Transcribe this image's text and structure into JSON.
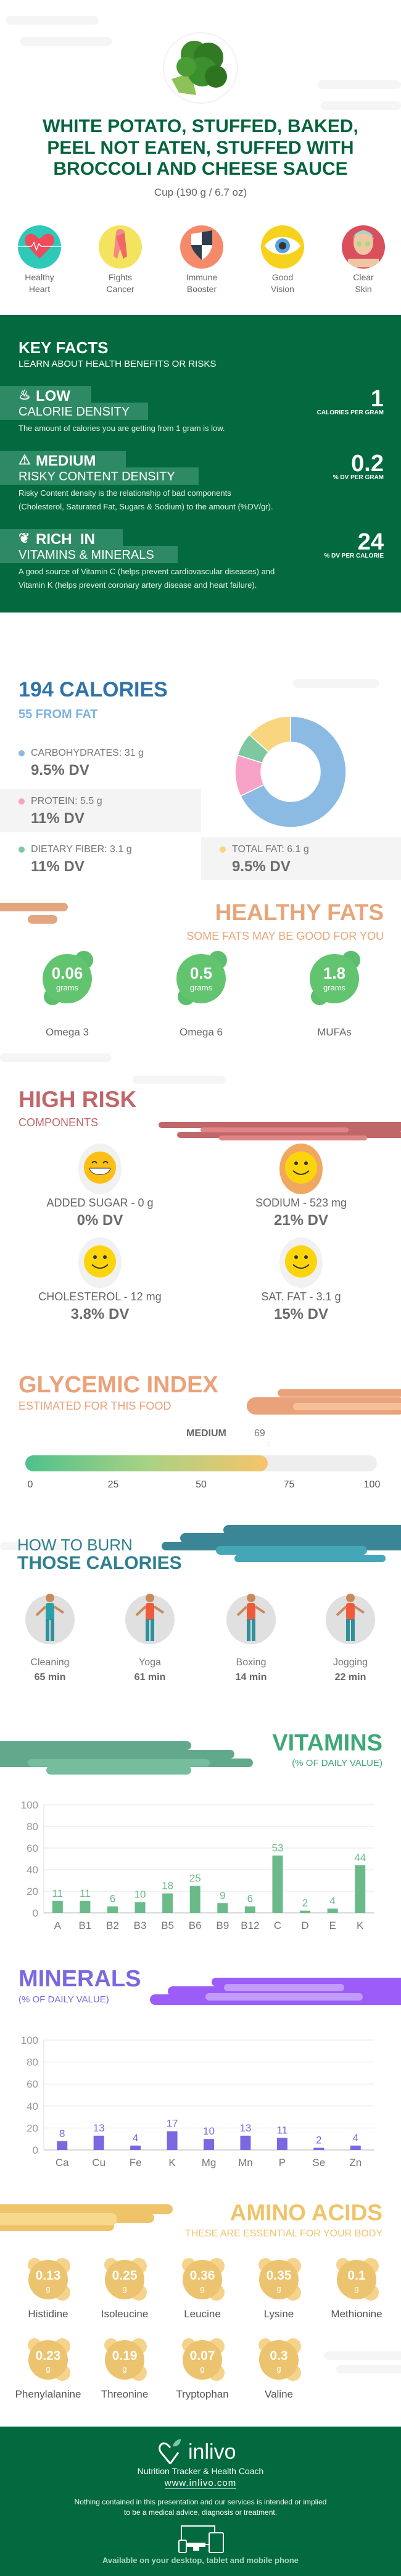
{
  "header": {
    "title_lines": [
      "WHITE POTATO, STUFFED, BAKED,",
      "PEEL NOT EATEN, STUFFED WITH",
      "BROCCOLI AND CHEESE SAUCE"
    ],
    "serving": "Cup (190 g / 6.7 oz)",
    "image_icon": "broccoli-photo"
  },
  "benefits": [
    {
      "line1": "Healthy",
      "line2": "Heart",
      "icon": "heart-icon",
      "color": "#2ec9b8"
    },
    {
      "line1": "Fights",
      "line2": "Cancer",
      "icon": "ribbon-icon",
      "color": "#f4e35e"
    },
    {
      "line1": "Immune",
      "line2": "Booster",
      "icon": "shield-icon",
      "color": "#f58a6b"
    },
    {
      "line1": "Good",
      "line2": "Vision",
      "icon": "eye-icon",
      "color": "#f7d21c"
    },
    {
      "line1": "Clear",
      "line2": "Skin",
      "icon": "face-mask-icon",
      "color": "#d94f5c"
    }
  ],
  "key_facts": {
    "title": "KEY FACTS",
    "subtitle": "LEARN ABOUT HEALTH BENEFITS OR RISKS",
    "items": [
      {
        "level": "LOW",
        "label": "CALORIE DENSITY",
        "value": "1",
        "unit": "CALORIES PER GRAM",
        "icon": "flame-icon",
        "desc_lines": [
          "The amount of calories you are getting from 1 gram is low."
        ]
      },
      {
        "level": "MEDIUM",
        "label": "RISKY CONTENT DENSITY",
        "value": "0.2",
        "unit": "% DV PER GRAM",
        "icon": "warning-icon",
        "desc_lines": [
          "Risky Content density is the relationship of bad components",
          "(Cholesterol, Saturated Fat, Sugars & Sodium) to the amount (%DV/gr)."
        ]
      },
      {
        "level": "RICH  IN",
        "label": "VITAMINS & MINERALS",
        "value": "24",
        "unit": "% DV PER CALORIE",
        "icon": "leaf-icon",
        "desc_lines": [
          "A good source of Vitamin C (helps prevent cardiovascular diseases) and",
          "Vitamin K (helps prevent coronary artery disease and heart failure)."
        ]
      }
    ]
  },
  "calories": {
    "title": "194 CALORIES",
    "subtitle": "55 FROM FAT",
    "macros": [
      {
        "label": "CARBOHYDRATES: 31 g",
        "dv": "9.5% DV",
        "grams": 31,
        "color": "#8bbbe2"
      },
      {
        "label": "PROTEIN: 5.5 g",
        "dv": "11% DV",
        "grams": 5.5,
        "color": "#f7a3c8"
      },
      {
        "label": "DIETARY FIBER: 3.1 g",
        "dv": "11% DV",
        "grams": 3.1,
        "color": "#7dc8a0"
      },
      {
        "label": "TOTAL FAT: 6.1 g",
        "dv": "9.5% DV",
        "grams": 6.1,
        "color": "#f8d57e"
      }
    ]
  },
  "healthy_fats": {
    "title": "HEALTHY FATS",
    "subtitle": "SOME FATS MAY BE GOOD FOR YOU",
    "unit": "grams",
    "items": [
      {
        "value": "0.06",
        "label": "Omega 3"
      },
      {
        "value": "0.5",
        "label": "Omega 6"
      },
      {
        "value": "1.8",
        "label": "MUFAs"
      }
    ]
  },
  "high_risk": {
    "title": "HIGH RISK",
    "subtitle": "COMPONENTS",
    "items": [
      {
        "label": "ADDED SUGAR - 0 g",
        "dv": "0% DV",
        "icon": "grinning-face-icon"
      },
      {
        "label": "SODIUM - 523 mg",
        "dv": "21% DV",
        "icon": "smiling-face-icon"
      },
      {
        "label": "CHOLESTEROL - 12 mg",
        "dv": "3.8% DV",
        "icon": "smiling-face-icon"
      },
      {
        "label": "SAT. FAT - 3.1 g",
        "dv": "15% DV",
        "icon": "smiling-face-icon"
      }
    ]
  },
  "glycemic": {
    "title": "GLYCEMIC INDEX",
    "subtitle": "ESTIMATED FOR THIS FOOD",
    "level": "MEDIUM",
    "value": 69,
    "value_text": "69",
    "scale": [
      "0",
      "25",
      "50",
      "75",
      "100"
    ]
  },
  "burn": {
    "title_top": "HOW TO BURN",
    "title_bottom": "THOSE CALORIES",
    "items": [
      {
        "label": "Cleaning",
        "time": "65 min",
        "icon": "cleaning-person-icon"
      },
      {
        "label": "Yoga",
        "time": "61 min",
        "icon": "yoga-person-icon"
      },
      {
        "label": "Boxing",
        "time": "14 min",
        "icon": "boxing-person-icon"
      },
      {
        "label": "Jogging",
        "time": "22 min",
        "icon": "jogging-person-icon"
      }
    ]
  },
  "chart_data": [
    {
      "type": "bar",
      "title": "VITAMINS",
      "subtitle": "(% OF DAILY VALUE)",
      "categories": [
        "A",
        "B1",
        "B2",
        "B3",
        "B5",
        "B6",
        "B9",
        "B12",
        "C",
        "D",
        "E",
        "K"
      ],
      "values": [
        11,
        11,
        6,
        10,
        18,
        25,
        9,
        6,
        53,
        2,
        4,
        44
      ],
      "ylim": [
        0,
        100
      ],
      "yticks": [
        "0",
        "20",
        "40",
        "60",
        "80",
        "100"
      ],
      "grid": true,
      "color": "#6aba8a"
    },
    {
      "type": "bar",
      "title": "MINERALS",
      "subtitle": "(% OF DAILY VALUE)",
      "categories": [
        "Ca",
        "Cu",
        "Fe",
        "K",
        "Mg",
        "Mn",
        "P",
        "Se",
        "Zn"
      ],
      "values": [
        8,
        13,
        4,
        17,
        10,
        13,
        11,
        2,
        4
      ],
      "ylim": [
        0,
        100
      ],
      "yticks": [
        "0",
        "20",
        "40",
        "60",
        "80",
        "100"
      ],
      "grid": true,
      "color": "#7b68e0"
    }
  ],
  "amino": {
    "title": "AMINO ACIDS",
    "subtitle": "THESE ARE ESSENTIAL FOR YOUR BODY",
    "unit": "g",
    "items": [
      {
        "value": "0.13",
        "label": "Histidine"
      },
      {
        "value": "0.25",
        "label": "Isoleucine"
      },
      {
        "value": "0.36",
        "label": "Leucine"
      },
      {
        "value": "0.35",
        "label": "Lysine"
      },
      {
        "value": "0.1",
        "label": "Methionine"
      },
      {
        "value": "0.23",
        "label": "Phenylalanine"
      },
      {
        "value": "0.19",
        "label": "Threonine"
      },
      {
        "value": "0.07",
        "label": "Tryptophan"
      },
      {
        "value": "0.3",
        "label": "Valine"
      }
    ]
  },
  "footer": {
    "brand": "inlivo",
    "tagline": "Nutrition Tracker & Health Coach",
    "url": "www.inlivo.com",
    "disclaimer_lines": [
      "Nothing contained in this presentation and our services is intended or implied",
      "to be a medical advice, diagnosis or treatment."
    ],
    "available": "Available on your desktop, tablet and mobile phone"
  },
  "colors": {
    "brand_green": "#03693f",
    "calories_blue": "#2f73a8",
    "fats_orange": "#e8a57a",
    "risk_red": "#c0676a",
    "glycemic_orange": "#eaa27a",
    "burn_teal": "#2f7f8e",
    "vitamins_green": "#3fa878",
    "minerals_purple": "#7b68e0",
    "amino_yellow": "#efc36a"
  }
}
